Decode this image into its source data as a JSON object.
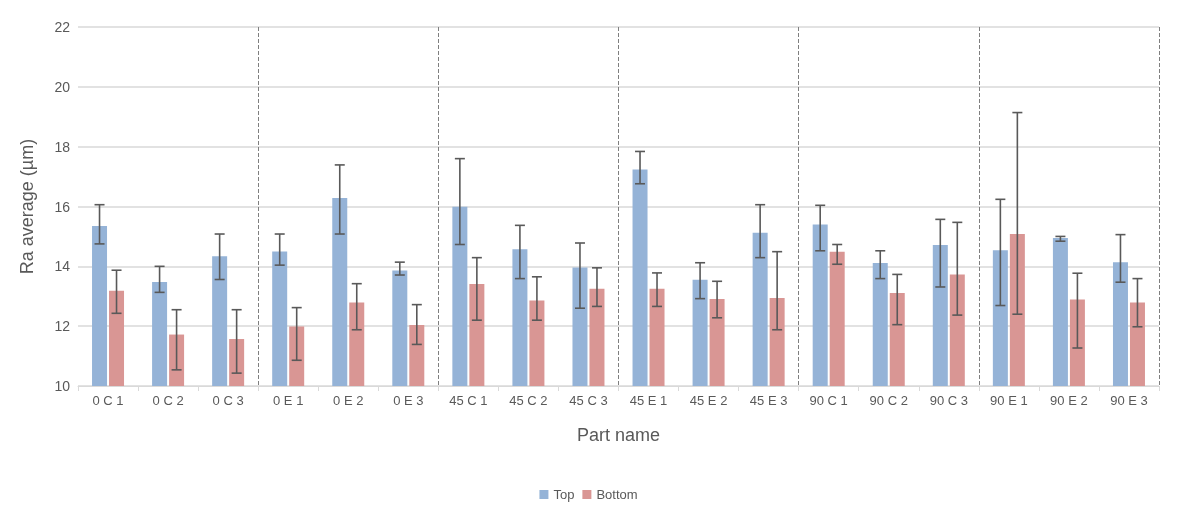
{
  "chart_data": {
    "type": "bar",
    "categories": [
      "0 C 1",
      "0 C 2",
      "0 C 3",
      "0 E 1",
      "0 E 2",
      "0 E 3",
      "45 C 1",
      "45 C 2",
      "45 C 3",
      "45 E 1",
      "45 E 2",
      "45 E 3",
      "90 C 1",
      "90 C 2",
      "90 C 3",
      "90 E 1",
      "90 E 2",
      "90 E 3"
    ],
    "series": [
      {
        "name": "Top",
        "color": "#95b3d7",
        "values": [
          15.35,
          13.48,
          14.34,
          14.5,
          16.28,
          13.86,
          15.99,
          14.57,
          13.96,
          17.24,
          13.55,
          15.12,
          15.4,
          14.11,
          14.71,
          14.54,
          14.95,
          14.14
        ],
        "errors": [
          [
            14.75,
            16.06
          ],
          [
            13.13,
            14.0
          ],
          [
            13.56,
            15.08
          ],
          [
            14.04,
            15.08
          ],
          [
            15.08,
            17.39
          ],
          [
            13.71,
            14.14
          ],
          [
            14.73,
            17.6
          ],
          [
            13.59,
            15.37
          ],
          [
            12.6,
            14.78
          ],
          [
            16.76,
            17.84
          ],
          [
            12.92,
            14.12
          ],
          [
            14.29,
            16.06
          ],
          [
            14.52,
            16.04
          ],
          [
            13.59,
            14.52
          ],
          [
            13.31,
            15.57
          ],
          [
            12.69,
            16.24
          ],
          [
            14.84,
            15.0
          ],
          [
            13.47,
            15.06
          ]
        ]
      },
      {
        "name": "Bottom",
        "color": "#d99694",
        "values": [
          13.18,
          11.72,
          11.57,
          11.99,
          12.79,
          12.04,
          13.41,
          12.86,
          13.25,
          13.25,
          12.91,
          12.94,
          14.49,
          13.11,
          13.73,
          15.08,
          12.89,
          12.79
        ],
        "errors": [
          [
            12.43,
            13.87
          ],
          [
            10.54,
            12.55
          ],
          [
            10.43,
            12.55
          ],
          [
            10.86,
            12.62
          ],
          [
            11.88,
            13.42
          ],
          [
            11.39,
            12.72
          ],
          [
            12.2,
            14.29
          ],
          [
            12.2,
            13.65
          ],
          [
            12.66,
            13.95
          ],
          [
            12.66,
            13.78
          ],
          [
            12.28,
            13.5
          ],
          [
            11.88,
            14.49
          ],
          [
            14.07,
            14.73
          ],
          [
            12.05,
            13.73
          ],
          [
            12.37,
            15.47
          ],
          [
            12.4,
            19.14
          ],
          [
            11.27,
            13.77
          ],
          [
            11.98,
            13.59
          ]
        ]
      }
    ],
    "xlabel": "Part name",
    "ylabel": "Ra average (µm)",
    "ylim": [
      10,
      22
    ],
    "yticks": [
      10,
      12,
      14,
      16,
      18,
      20,
      22
    ],
    "grid": "y",
    "legend": "bottom"
  }
}
